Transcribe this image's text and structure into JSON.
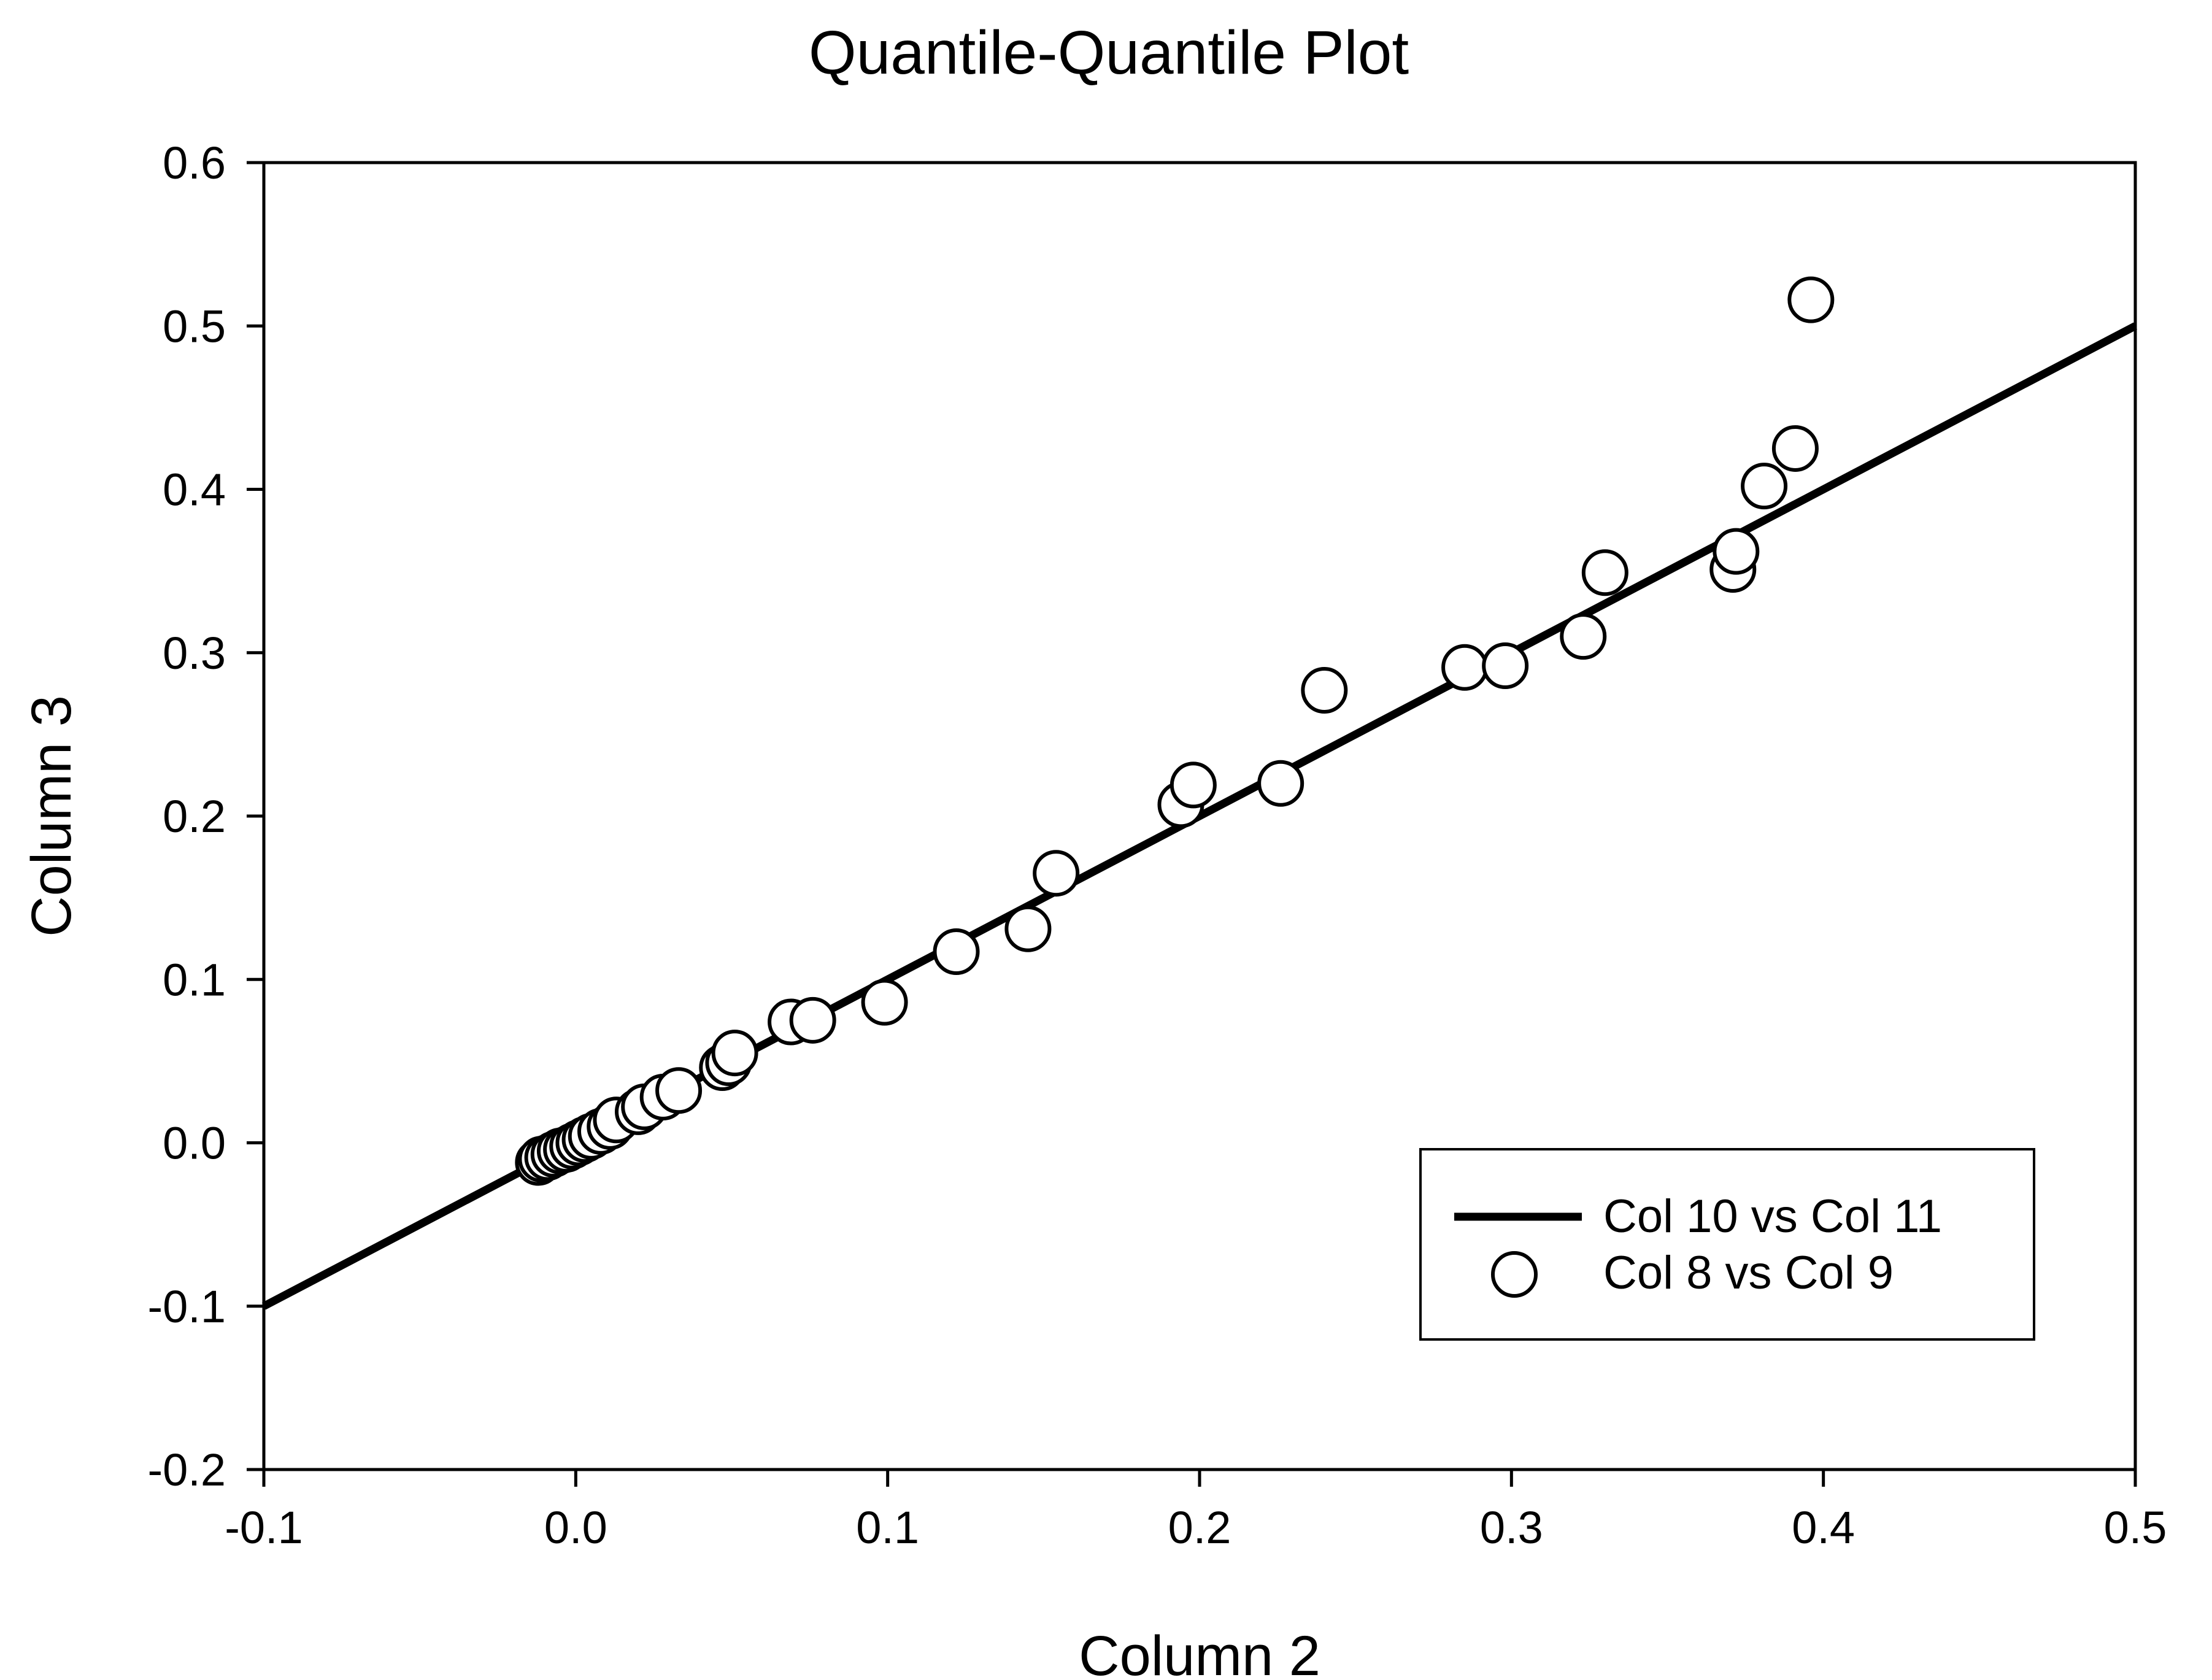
{
  "chart_data": {
    "type": "scatter",
    "title": "Quantile-Quantile Plot",
    "xlabel": "Column 2",
    "ylabel": "Column 3",
    "xlim": [
      -0.1,
      0.5
    ],
    "ylim": [
      -0.2,
      0.6
    ],
    "xticks": [
      "-0.1",
      "0.0",
      "0.1",
      "0.2",
      "0.3",
      "0.4",
      "0.5"
    ],
    "yticks": [
      "-0.2",
      "-0.1",
      "0.0",
      "0.1",
      "0.2",
      "0.3",
      "0.4",
      "0.5",
      "0.6"
    ],
    "grid": false,
    "legend_position": "bottom-right",
    "series": [
      {
        "name": "Col 10 vs Col 11",
        "kind": "line",
        "color": "#000000",
        "x": [
          -0.1,
          0.5
        ],
        "y": [
          -0.1,
          0.5
        ]
      },
      {
        "name": "Col 8 vs Col 9",
        "kind": "scatter",
        "marker": "open-circle",
        "color": "#000000",
        "x": [
          -0.012,
          -0.011,
          -0.009,
          -0.007,
          -0.005,
          -0.003,
          -0.001,
          0.001,
          0.003,
          0.005,
          0.008,
          0.011,
          0.013,
          0.02,
          0.022,
          0.028,
          0.033,
          0.047,
          0.049,
          0.051,
          0.069,
          0.076,
          0.099,
          0.122,
          0.145,
          0.154,
          0.194,
          0.198,
          0.226,
          0.24,
          0.285,
          0.298,
          0.323,
          0.33,
          0.371,
          0.372,
          0.381,
          0.391,
          0.396
        ],
        "y": [
          -0.012,
          -0.01,
          -0.009,
          -0.007,
          -0.005,
          -0.004,
          -0.002,
          0.0,
          0.002,
          0.004,
          0.007,
          0.01,
          0.014,
          0.019,
          0.022,
          0.028,
          0.032,
          0.046,
          0.049,
          0.055,
          0.074,
          0.075,
          0.086,
          0.117,
          0.131,
          0.165,
          0.207,
          0.219,
          0.22,
          0.277,
          0.291,
          0.292,
          0.31,
          0.349,
          0.351,
          0.362,
          0.402,
          0.425,
          0.516
        ]
      }
    ]
  }
}
